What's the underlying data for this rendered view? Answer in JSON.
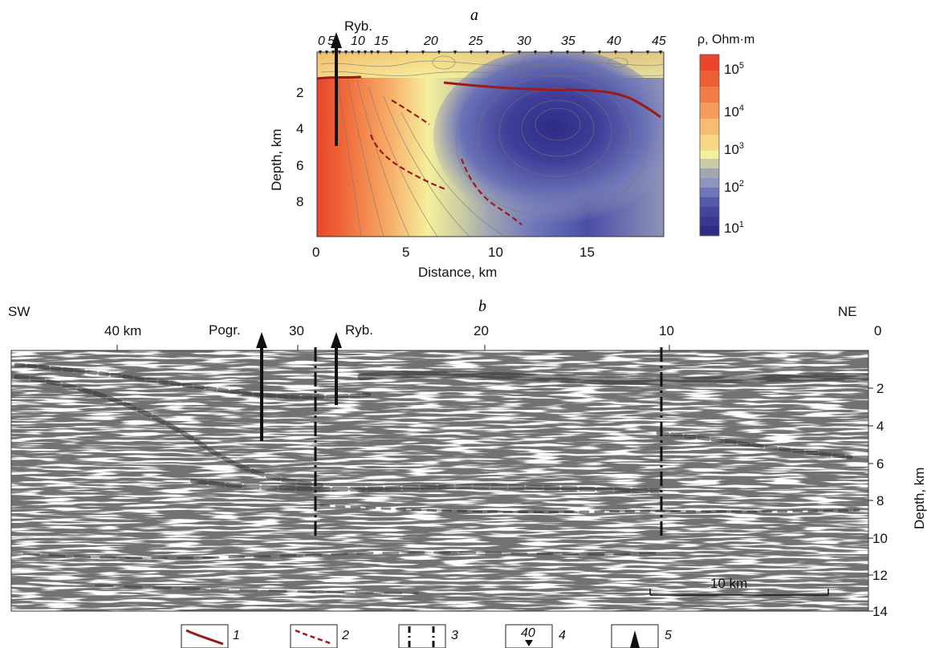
{
  "panel_a": {
    "label": "a",
    "well_label": "Ryb.",
    "station_labels": [
      "0",
      "5",
      "10",
      "15",
      "20",
      "25",
      "30",
      "35",
      "40",
      "45"
    ],
    "x_axis_title": "Distance, km",
    "x_ticks": [
      "0",
      "5",
      "10",
      "15"
    ],
    "y_axis_title": "Depth, km",
    "y_ticks": [
      "2",
      "4",
      "6",
      "8"
    ],
    "colorbar_title": "ρ, Ohm·m",
    "colorbar_ticks": [
      {
        "base": "10",
        "exp": "5"
      },
      {
        "base": "10",
        "exp": "4"
      },
      {
        "base": "10",
        "exp": "3"
      },
      {
        "base": "10",
        "exp": "2"
      },
      {
        "base": "10",
        "exp": "1"
      }
    ],
    "colors": {
      "high": "#e8452b",
      "mid": "#f6ef9c",
      "low": "#3b3a8f",
      "boundary": "#9b1b1b"
    }
  },
  "panel_b": {
    "label": "b",
    "left_dir": "SW",
    "right_dir": "NE",
    "top_ticks": [
      "40 km",
      "30",
      "20",
      "10"
    ],
    "right_zero": "0",
    "well_labels": [
      "Pogr.",
      "Ryb."
    ],
    "depth_ticks": [
      "2",
      "4",
      "6",
      "8",
      "10",
      "12",
      "14"
    ],
    "y_axis_title": "Depth, km",
    "scale_bar_label": "10 km"
  },
  "legend": {
    "items": [
      {
        "num": "1",
        "icon": "solid-boundary-icon"
      },
      {
        "num": "2",
        "icon": "dashed-boundary-icon"
      },
      {
        "num": "3",
        "icon": "fault-dashdot-icon"
      },
      {
        "num": "4",
        "icon": "station-triangle-icon",
        "sample": "40"
      },
      {
        "num": "5",
        "icon": "borehole-arrow-icon"
      }
    ]
  }
}
